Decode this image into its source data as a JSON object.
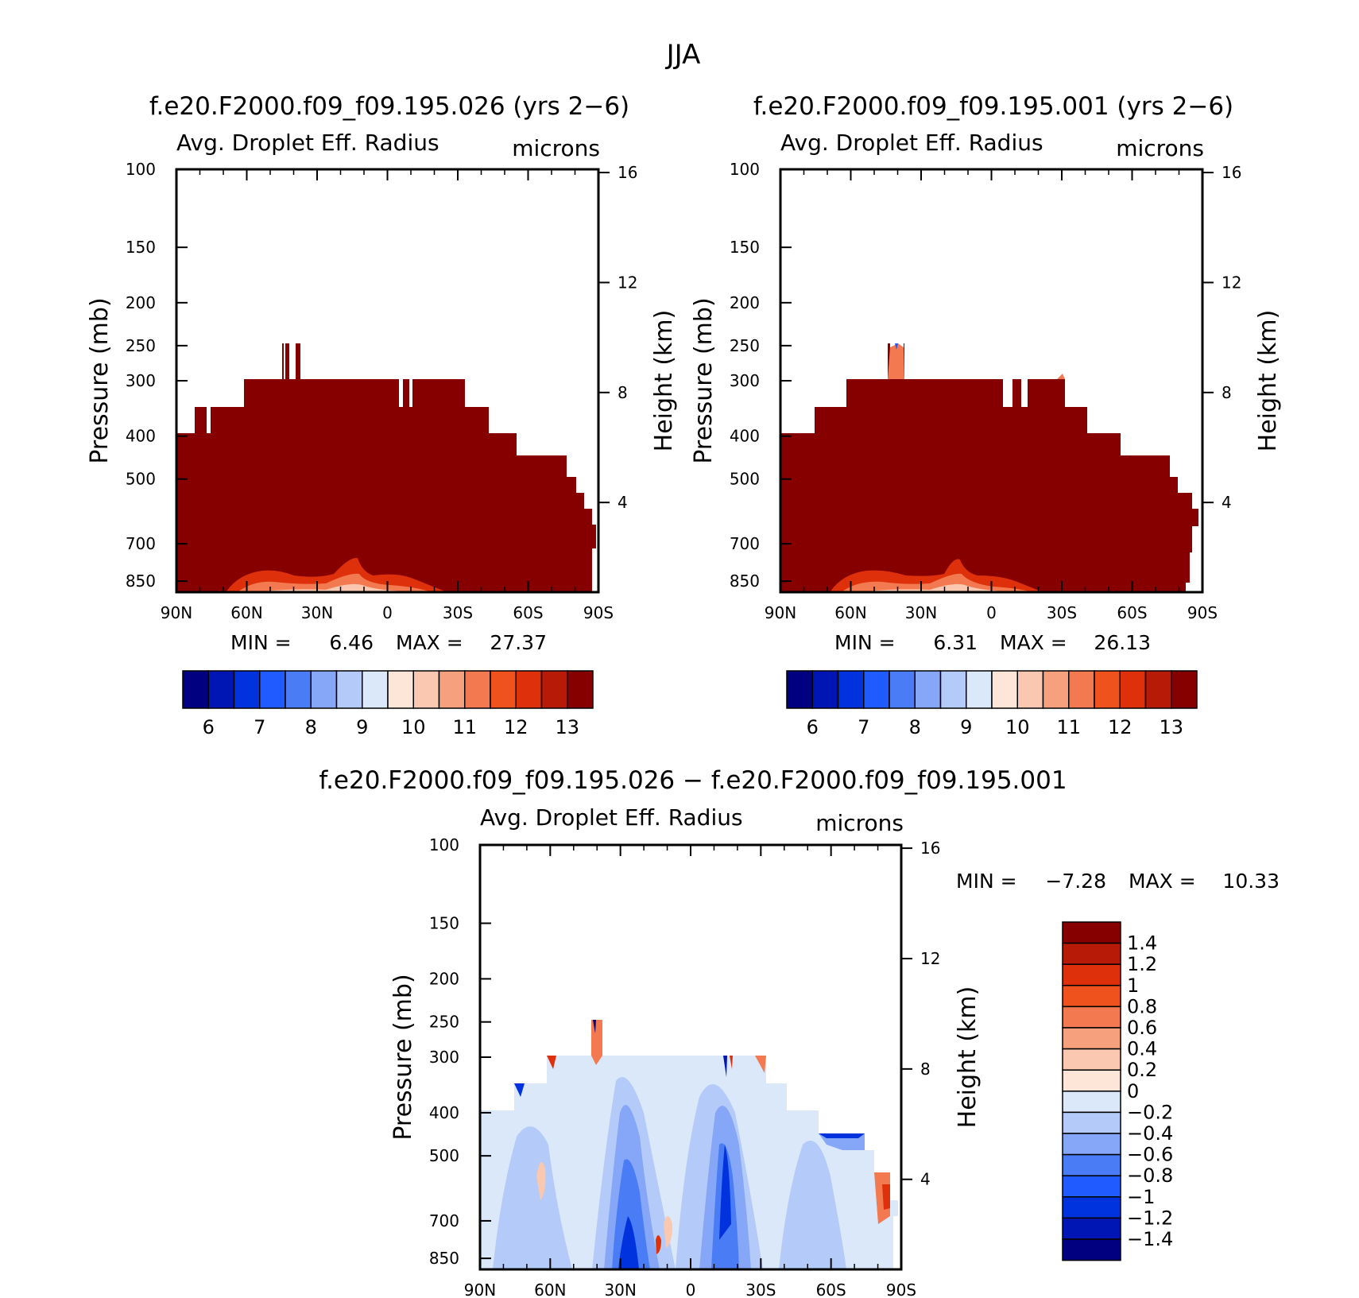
{
  "main_title": "JJA",
  "colors": {
    "abs_scale": [
      "#000080",
      "#0016b4",
      "#0033dd",
      "#1f5bff",
      "#4a7cf5",
      "#86a7f7",
      "#b4cbfa",
      "#dae8fa",
      "#fde6d8",
      "#fac7b0",
      "#f6a07d",
      "#f37a50",
      "#f0521e",
      "#de300a",
      "#b81a08",
      "#870000"
    ],
    "diff_scale": [
      "#870000",
      "#b81a08",
      "#de300a",
      "#f0521e",
      "#f37a50",
      "#f6a07d",
      "#fac7b0",
      "#fde6d8",
      "#dae8fa",
      "#b4cbfa",
      "#86a7f7",
      "#4a7cf5",
      "#1f5bff",
      "#0033dd",
      "#0016b4",
      "#000080"
    ]
  },
  "chart_data": [
    {
      "type": "heatmap",
      "title": "f.e20.F2000.f09_f09.195.026 (yrs 2−6)",
      "variable": "Avg. Droplet Eff. Radius",
      "units": "microns",
      "ylabel": "Pressure (mb)",
      "ylabel2": "Height (km)",
      "x_ticks": [
        "90N",
        "60N",
        "30N",
        "0",
        "30S",
        "60S",
        "90S"
      ],
      "y_ticks": [
        "100",
        "150",
        "200",
        "250",
        "300",
        "400",
        "500",
        "700",
        "850"
      ],
      "y2_ticks": [
        "16",
        "12",
        "8",
        "4"
      ],
      "min_label": "MIN =",
      "min_value": "6.46",
      "max_label": "MAX =",
      "max_value": "27.37",
      "colorbar_labels": [
        "6",
        "7",
        "8",
        "9",
        "10",
        "11",
        "12",
        "13"
      ]
    },
    {
      "type": "heatmap",
      "title": "f.e20.F2000.f09_f09.195.001 (yrs 2−6)",
      "variable": "Avg. Droplet Eff. Radius",
      "units": "microns",
      "ylabel": "Pressure (mb)",
      "ylabel2": "Height (km)",
      "x_ticks": [
        "90N",
        "60N",
        "30N",
        "0",
        "30S",
        "60S",
        "90S"
      ],
      "y_ticks": [
        "100",
        "150",
        "200",
        "250",
        "300",
        "400",
        "500",
        "700",
        "850"
      ],
      "y2_ticks": [
        "16",
        "12",
        "8",
        "4"
      ],
      "min_label": "MIN =",
      "min_value": "6.31",
      "max_label": "MAX =",
      "max_value": "26.13",
      "colorbar_labels": [
        "6",
        "7",
        "8",
        "9",
        "10",
        "11",
        "12",
        "13"
      ]
    },
    {
      "type": "heatmap",
      "title": "f.e20.F2000.f09_f09.195.026 − f.e20.F2000.f09_f09.195.001",
      "variable": "Avg. Droplet Eff. Radius",
      "units": "microns",
      "ylabel": "Pressure (mb)",
      "ylabel2": "Height (km)",
      "x_ticks": [
        "90N",
        "60N",
        "30N",
        "0",
        "30S",
        "60S",
        "90S"
      ],
      "y_ticks": [
        "100",
        "150",
        "200",
        "250",
        "300",
        "400",
        "500",
        "700",
        "850"
      ],
      "y2_ticks": [
        "16",
        "12",
        "8",
        "4"
      ],
      "min_label": "MIN =",
      "min_value": "−7.28",
      "max_label": "MAX =",
      "max_value": "10.33",
      "colorbar_labels": [
        "1.4",
        "1.2",
        "1",
        "0.8",
        "0.6",
        "0.4",
        "0.2",
        "0",
        "−0.2",
        "−0.4",
        "−0.6",
        "−0.8",
        "−1",
        "−1.2",
        "−1.4"
      ]
    }
  ]
}
